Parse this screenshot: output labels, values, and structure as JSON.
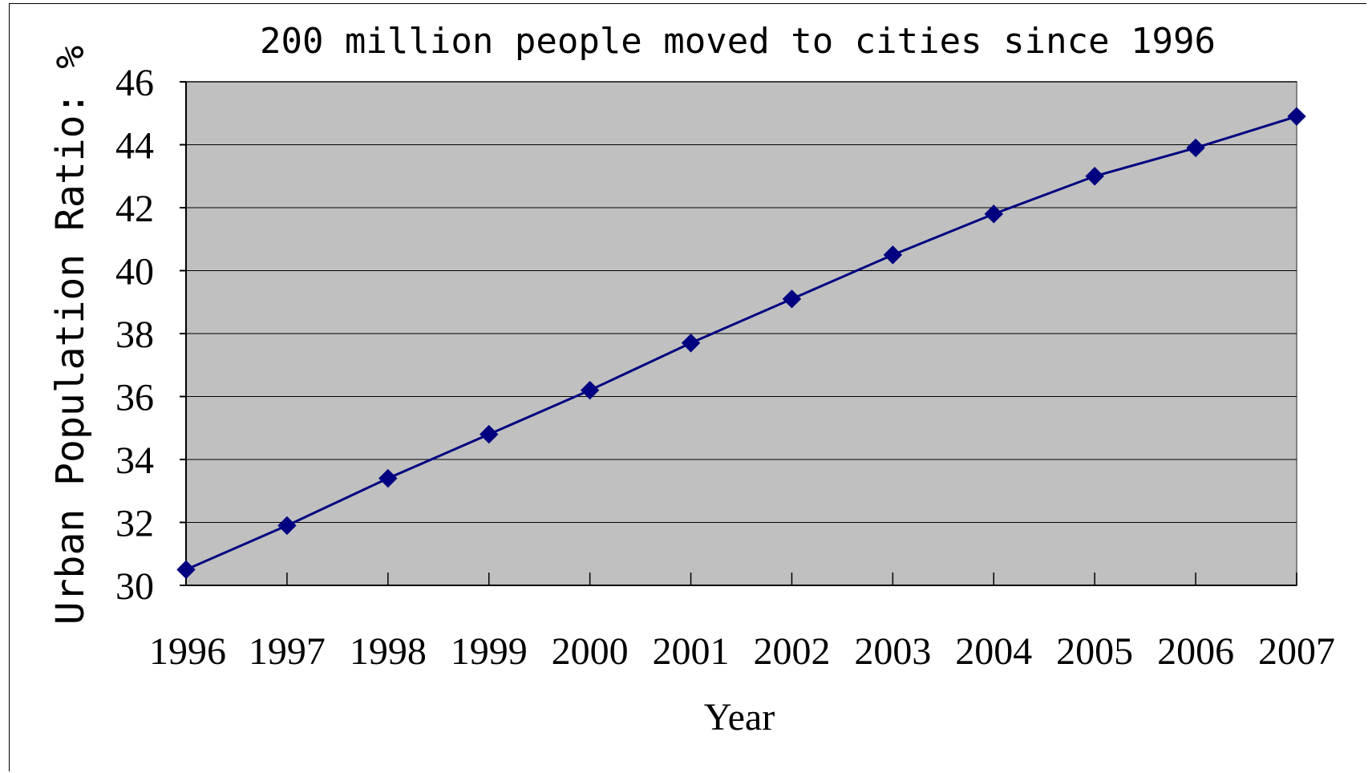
{
  "chart_data": {
    "type": "line",
    "title": "200 million people moved to cities since 1996",
    "xlabel": "Year",
    "ylabel": "Urban Population Ratio: %",
    "categories": [
      "1996",
      "1997",
      "1998",
      "1999",
      "2000",
      "2001",
      "2002",
      "2003",
      "2004",
      "2005",
      "2006",
      "2007"
    ],
    "series": [
      {
        "values": [
          30.5,
          31.9,
          33.4,
          34.8,
          36.2,
          37.7,
          39.1,
          40.5,
          41.8,
          43.0,
          43.9,
          44.9
        ]
      }
    ],
    "ylim": [
      30,
      46
    ],
    "yticks": [
      "30",
      "32",
      "34",
      "36",
      "38",
      "40",
      "42",
      "44",
      "46"
    ],
    "grid": true,
    "legend": "none",
    "colors": {
      "plot_background": "#c0c0c0",
      "line": "#000080",
      "marker": "#000080",
      "gridline": "#000000"
    }
  }
}
